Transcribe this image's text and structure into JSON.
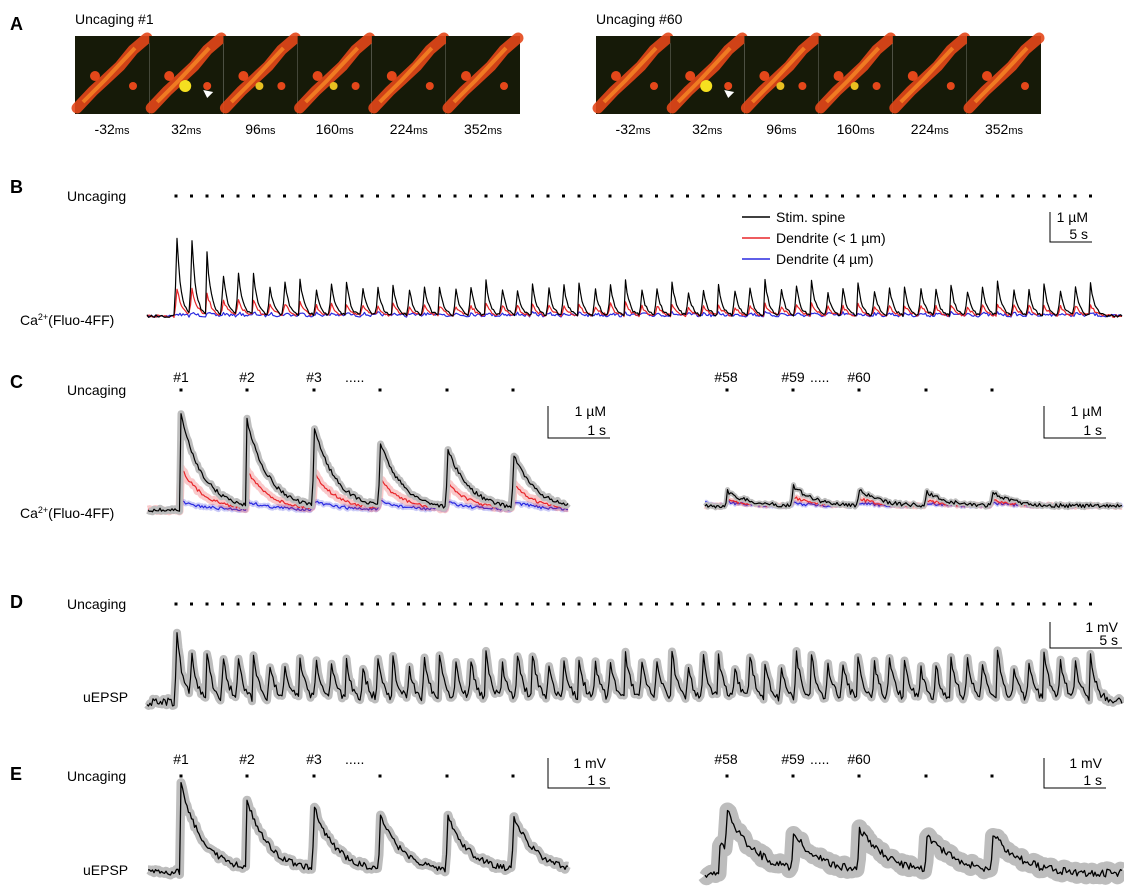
{
  "a": {
    "label": "A",
    "groups": [
      {
        "title": "Uncaging #1",
        "frames": [
          "-32",
          "32",
          "96",
          "160",
          "224",
          "352"
        ],
        "unit": "ms"
      },
      {
        "title": "Uncaging #60",
        "frames": [
          "-32",
          "32",
          "96",
          "160",
          "224",
          "352"
        ],
        "unit": "ms"
      }
    ]
  },
  "b": {
    "label": "B",
    "stim_label": "Uncaging",
    "legend": [
      {
        "name": "Stim. spine",
        "color": "#000000"
      },
      {
        "name": "Dendrite (< 1 µm)",
        "color": "#e8262a"
      },
      {
        "name": "Dendrite (4 µm)",
        "color": "#2a2ae0"
      }
    ],
    "scale": {
      "y": "1 µM",
      "x": "5 s"
    },
    "trace_label": {
      "ion": "Ca",
      "charge": "2+",
      "dye": "(Fluo-4FF)"
    }
  },
  "c": {
    "label": "C",
    "stim_label": "Uncaging",
    "left_numbers": [
      "#1",
      "#2",
      "#3"
    ],
    "ellipsis": ".....",
    "right_numbers": [
      "#58",
      "#59",
      "#60"
    ],
    "scale": {
      "y": "1 µM",
      "x": "1 s"
    },
    "trace_label": {
      "ion": "Ca",
      "charge": "2+",
      "dye": "(Fluo-4FF)"
    }
  },
  "d": {
    "label": "D",
    "stim_label": "Uncaging",
    "scale": {
      "y": "1 mV",
      "x": "5 s"
    },
    "trace_label": "uEPSP"
  },
  "e": {
    "label": "E",
    "stim_label": "Uncaging",
    "left_numbers": [
      "#1",
      "#2",
      "#3"
    ],
    "ellipsis": ".....",
    "right_numbers": [
      "#58",
      "#59",
      "#60"
    ],
    "scale": {
      "y": "1 mV",
      "x": "1 s"
    },
    "trace_label": "uEPSP"
  }
}
